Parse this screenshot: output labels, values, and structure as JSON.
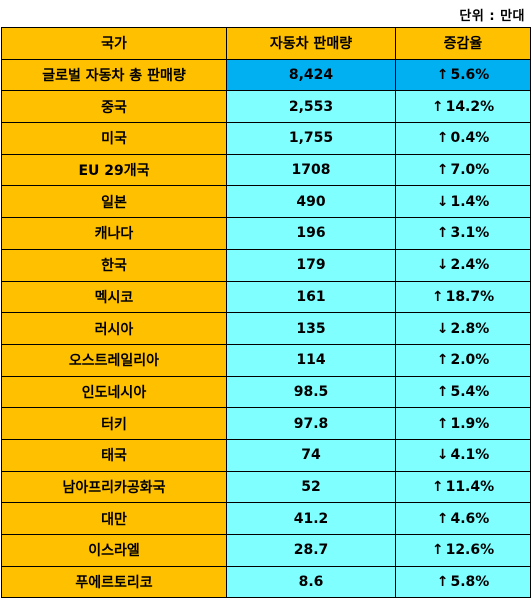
{
  "unit_note": "단위 : 만대",
  "header": {
    "country": "국가",
    "sales": "자동차 판매량",
    "growth": "증감율"
  },
  "colors": {
    "header_bg": "#FFC000",
    "country_bg": "#FFC000",
    "value_bg": "#7FFFFF",
    "total_value_bg": "#00B0F0"
  },
  "rows": [
    {
      "country": "글로벌 자동차 총 판매량",
      "sales": "8,424",
      "arrow": "↑",
      "growth": "5.6%"
    },
    {
      "country": "중국",
      "sales": "2,553",
      "arrow": "↑",
      "growth": "14.2%"
    },
    {
      "country": "미국",
      "sales": "1,755",
      "arrow": "↑",
      "growth": "0.4%"
    },
    {
      "country": "EU 29개국",
      "sales": "1708",
      "arrow": "↑",
      "growth": "7.0%"
    },
    {
      "country": "일본",
      "sales": "490",
      "arrow": "↓",
      "growth": "1.4%"
    },
    {
      "country": "캐나다",
      "sales": "196",
      "arrow": "↑",
      "growth": "3.1%"
    },
    {
      "country": "한국",
      "sales": "179",
      "arrow": "↓",
      "growth": "2.4%"
    },
    {
      "country": "멕시코",
      "sales": "161",
      "arrow": "↑",
      "growth": "18.7%"
    },
    {
      "country": "러시아",
      "sales": "135",
      "arrow": "↓",
      "growth": "2.8%"
    },
    {
      "country": "오스트레일리아",
      "sales": "114",
      "arrow": "↑",
      "growth": "2.0%"
    },
    {
      "country": "인도네시아",
      "sales": "98.5",
      "arrow": "↑",
      "growth": "5.4%"
    },
    {
      "country": "터키",
      "sales": "97.8",
      "arrow": "↑",
      "growth": "1.9%"
    },
    {
      "country": "태국",
      "sales": "74",
      "arrow": "↓",
      "growth": "4.1%"
    },
    {
      "country": "남아프리카공화국",
      "sales": "52",
      "arrow": "↑",
      "growth": "11.4%"
    },
    {
      "country": "대만",
      "sales": "41.2",
      "arrow": "↑",
      "growth": "4.6%"
    },
    {
      "country": "이스라엘",
      "sales": "28.7",
      "arrow": "↑",
      "growth": "12.6%"
    },
    {
      "country": "푸에르토리코",
      "sales": "8.6",
      "arrow": "↑",
      "growth": "5.8%"
    }
  ]
}
